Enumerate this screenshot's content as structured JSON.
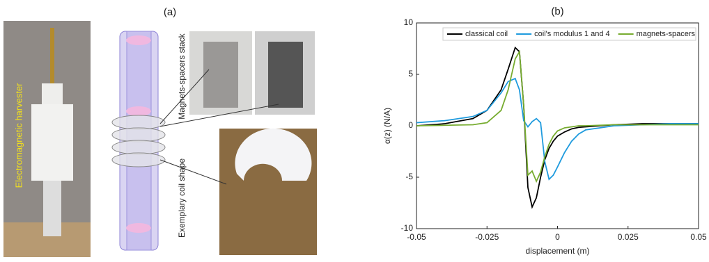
{
  "panel_a": {
    "label": "(a)",
    "photo_labels": [
      "Electromagnetic harvester",
      "Magnets-spacers stack",
      "Exemplary coil shape"
    ]
  },
  "chart_data": {
    "type": "line",
    "title": "(b)",
    "x_label": "displacement (m)",
    "y_label": "α(z) (N/A)",
    "x": [
      -0.05,
      -0.04,
      -0.03,
      -0.025,
      -0.02,
      -0.0175,
      -0.015,
      -0.0135,
      -0.012,
      -0.0105,
      -0.009,
      -0.0075,
      -0.006,
      -0.0045,
      -0.003,
      -0.0015,
      0,
      0.0025,
      0.005,
      0.0075,
      0.01,
      0.015,
      0.02,
      0.03,
      0.04,
      0.05
    ],
    "series": [
      {
        "name": "classical coil",
        "color": "#000000",
        "values": [
          0,
          0.2,
          0.7,
          1.5,
          3.5,
          5.5,
          7.6,
          7.2,
          2,
          -6,
          -7.9,
          -7,
          -5,
          -3.3,
          -2.2,
          -1.5,
          -1,
          -0.6,
          -0.3,
          -0.15,
          -0.1,
          0,
          0.1,
          0.2,
          0.2,
          0.2
        ]
      },
      {
        "name": "coil's modulus 1 and 4",
        "color": "#1f9bde",
        "values": [
          0.3,
          0.5,
          0.9,
          1.5,
          3.2,
          4.3,
          4.6,
          3.5,
          0.5,
          -0.1,
          0.4,
          0.7,
          0.3,
          -3.5,
          -5.2,
          -4.8,
          -4,
          -2.6,
          -1.5,
          -0.8,
          -0.4,
          -0.2,
          0,
          0.1,
          0.2,
          0.2
        ]
      },
      {
        "name": "magnets-spacers",
        "color": "#77ac30",
        "values": [
          0,
          0.05,
          0.1,
          0.3,
          1.5,
          3.5,
          6.5,
          7.2,
          2,
          -4.8,
          -4.4,
          -5.4,
          -4.5,
          -3,
          -1.8,
          -1,
          -0.5,
          -0.2,
          -0.1,
          0,
          0,
          0.05,
          0.1,
          0.1,
          0.1,
          0.1
        ]
      }
    ],
    "xlim": [
      -0.05,
      0.05
    ],
    "xticks": [
      -0.05,
      -0.025,
      0,
      0.025,
      0.05
    ],
    "ylim": [
      -10,
      10
    ],
    "yticks": [
      -10,
      -5,
      0,
      5,
      10
    ],
    "legend": "top"
  }
}
